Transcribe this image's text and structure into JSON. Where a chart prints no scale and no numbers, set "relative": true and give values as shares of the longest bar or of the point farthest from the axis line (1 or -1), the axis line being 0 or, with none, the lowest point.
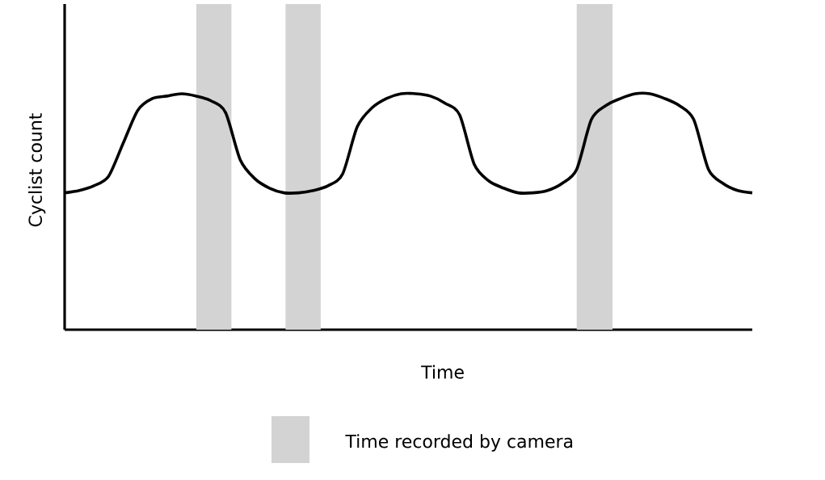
{
  "chart_data": {
    "type": "line",
    "relative": true,
    "xlabel": "Time",
    "ylabel": "Cyclist count",
    "tick_labels": false,
    "categories": [
      null,
      null,
      null,
      null,
      null,
      null,
      null,
      null,
      null,
      null,
      null,
      null,
      null,
      null,
      null,
      null,
      null,
      null,
      null,
      null,
      null,
      null,
      null,
      null,
      null,
      null,
      null,
      null,
      null,
      null,
      null,
      null,
      null,
      null,
      null,
      null,
      null,
      null,
      null,
      null,
      null,
      null,
      null,
      null,
      null,
      null,
      null,
      null
    ],
    "series": [
      {
        "color": "#000000",
        "values": [
          0.58,
          0.59,
          0.61,
          0.65,
          0.79,
          0.93,
          0.98,
          0.99,
          1.0,
          0.99,
          0.97,
          0.92,
          0.72,
          0.64,
          0.6,
          0.58,
          0.58,
          0.59,
          0.61,
          0.66,
          0.86,
          0.94,
          0.98,
          1.0,
          1.0,
          0.99,
          0.96,
          0.91,
          0.7,
          0.63,
          0.6,
          0.58,
          0.58,
          0.59,
          0.62,
          0.68,
          0.89,
          0.95,
          0.98,
          1.0,
          1.0,
          0.98,
          0.95,
          0.89,
          0.68,
          0.62,
          0.59,
          0.58
        ]
      }
    ],
    "annotations": [
      "Time recorded by camera"
    ]
  }
}
